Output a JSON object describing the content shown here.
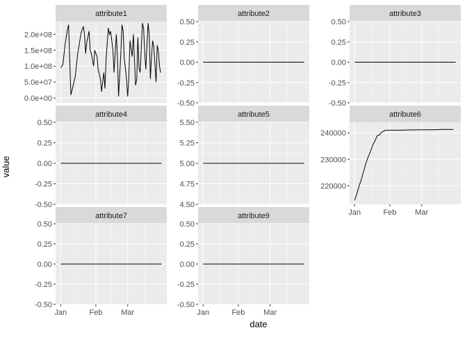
{
  "figure": {
    "x_axis_title": "date",
    "y_axis_title": "value",
    "x_tick_labels": [
      "Jan",
      "Feb",
      "Mar"
    ],
    "colors": {
      "panel_background": "#ebebeb",
      "strip_background": "#d9d9d9",
      "grid_major": "#ffffff",
      "line": "#000000",
      "tick_text": "#4d4d4d"
    }
  },
  "chart_data": [
    {
      "type": "line",
      "title": "attribute1",
      "yticks": [
        "0.0e+00",
        "5.0e+07",
        "1.0e+08",
        "1.5e+08",
        "2.0e+08"
      ],
      "ytick_values": [
        0,
        50000000,
        100000000,
        150000000,
        200000000
      ],
      "ylim": [
        -15000000,
        240000000
      ],
      "xlim": [
        "2021-01-01",
        "2021-03-31"
      ],
      "x": [
        "2021-01-01",
        "2021-01-03",
        "2021-01-05",
        "2021-01-07",
        "2021-01-08",
        "2021-01-10",
        "2021-01-12",
        "2021-01-14",
        "2021-01-16",
        "2021-01-17",
        "2021-01-19",
        "2021-01-21",
        "2021-01-22",
        "2021-01-23",
        "2021-01-24",
        "2021-01-26",
        "2021-01-27",
        "2021-01-28",
        "2021-01-30",
        "2021-01-31",
        "2021-02-02",
        "2021-02-03",
        "2021-02-05",
        "2021-02-06",
        "2021-02-08",
        "2021-02-09",
        "2021-02-10",
        "2021-02-12",
        "2021-02-13",
        "2021-02-14",
        "2021-02-16",
        "2021-02-17",
        "2021-02-19",
        "2021-02-20",
        "2021-02-21",
        "2021-02-23",
        "2021-02-24",
        "2021-02-25",
        "2021-02-26",
        "2021-02-28",
        "2021-03-01",
        "2021-03-02",
        "2021-03-03",
        "2021-03-05",
        "2021-03-06",
        "2021-03-08",
        "2021-03-09",
        "2021-03-10",
        "2021-03-11",
        "2021-03-12",
        "2021-03-14",
        "2021-03-15",
        "2021-03-16",
        "2021-03-17",
        "2021-03-19",
        "2021-03-20",
        "2021-03-21",
        "2021-03-22",
        "2021-03-23",
        "2021-03-24",
        "2021-03-26",
        "2021-03-27",
        "2021-03-28",
        "2021-03-29",
        "2021-03-30"
      ],
      "series": [
        {
          "values": [
            95000000,
            105000000,
            170000000,
            215000000,
            230000000,
            10000000,
            40000000,
            70000000,
            140000000,
            160000000,
            205000000,
            225000000,
            200000000,
            140000000,
            175000000,
            210000000,
            150000000,
            140000000,
            100000000,
            150000000,
            130000000,
            90000000,
            60000000,
            20000000,
            80000000,
            30000000,
            120000000,
            220000000,
            200000000,
            210000000,
            150000000,
            80000000,
            200000000,
            130000000,
            5000000,
            140000000,
            230000000,
            210000000,
            125000000,
            60000000,
            5000000,
            60000000,
            180000000,
            130000000,
            200000000,
            40000000,
            60000000,
            190000000,
            95000000,
            80000000,
            235000000,
            220000000,
            145000000,
            90000000,
            235000000,
            200000000,
            60000000,
            130000000,
            180000000,
            160000000,
            50000000,
            165000000,
            150000000,
            100000000,
            80000000
          ]
        }
      ]
    },
    {
      "type": "line",
      "title": "attribute2",
      "yticks": [
        "-0.50",
        "-0.25",
        "0.00",
        "0.25",
        "0.50"
      ],
      "ytick_values": [
        -0.5,
        -0.25,
        0,
        0.25,
        0.5
      ],
      "ylim": [
        -0.5,
        0.5
      ],
      "xlim": [
        "2021-01-01",
        "2021-03-31"
      ],
      "x": [
        "2021-01-01",
        "2021-03-31"
      ],
      "series": [
        {
          "values": [
            0,
            0
          ]
        }
      ]
    },
    {
      "type": "line",
      "title": "attribute3",
      "yticks": [
        "-0.50",
        "-0.25",
        "0.00",
        "0.25",
        "0.50"
      ],
      "ytick_values": [
        -0.5,
        -0.25,
        0,
        0.25,
        0.5
      ],
      "ylim": [
        -0.5,
        0.5
      ],
      "xlim": [
        "2021-01-01",
        "2021-03-31"
      ],
      "x": [
        "2021-01-01",
        "2021-03-31"
      ],
      "series": [
        {
          "values": [
            0,
            0
          ]
        }
      ]
    },
    {
      "type": "line",
      "title": "attribute4",
      "yticks": [
        "-0.50",
        "-0.25",
        "0.00",
        "0.25",
        "0.50"
      ],
      "ytick_values": [
        -0.5,
        -0.25,
        0,
        0.25,
        0.5
      ],
      "ylim": [
        -0.5,
        0.5
      ],
      "xlim": [
        "2021-01-01",
        "2021-03-31"
      ],
      "x": [
        "2021-01-01",
        "2021-03-31"
      ],
      "series": [
        {
          "values": [
            0,
            0
          ]
        }
      ]
    },
    {
      "type": "line",
      "title": "attribute5",
      "yticks": [
        "4.50",
        "4.75",
        "5.00",
        "5.25",
        "5.50"
      ],
      "ytick_values": [
        4.5,
        4.75,
        5,
        5.25,
        5.5
      ],
      "ylim": [
        4.5,
        5.5
      ],
      "xlim": [
        "2021-01-01",
        "2021-03-31"
      ],
      "x": [
        "2021-01-01",
        "2021-03-31"
      ],
      "series": [
        {
          "values": [
            5,
            5
          ]
        }
      ]
    },
    {
      "type": "line",
      "title": "attribute6",
      "yticks": [
        "220000",
        "230000",
        "240000"
      ],
      "ytick_values": [
        220000,
        230000,
        240000
      ],
      "ylim": [
        213000,
        244000
      ],
      "xlim": [
        "2021-01-01",
        "2021-03-31"
      ],
      "x": [
        "2021-01-01",
        "2021-01-03",
        "2021-01-05",
        "2021-01-07",
        "2021-01-09",
        "2021-01-11",
        "2021-01-13",
        "2021-01-15",
        "2021-01-17",
        "2021-01-19",
        "2021-01-21",
        "2021-01-23",
        "2021-01-24",
        "2021-01-26",
        "2021-01-28",
        "2021-02-01",
        "2021-02-10",
        "2021-02-20",
        "2021-03-01",
        "2021-03-10",
        "2021-03-20",
        "2021-03-29"
      ],
      "series": [
        {
          "values": [
            214500,
            217000,
            220000,
            222500,
            225500,
            228500,
            231000,
            233000,
            235500,
            237000,
            239000,
            239200,
            240000,
            240500,
            241000,
            241000,
            241000,
            241100,
            241200,
            241200,
            241300,
            241300
          ]
        }
      ]
    },
    {
      "type": "line",
      "title": "attribute7",
      "yticks": [
        "-0.50",
        "-0.25",
        "0.00",
        "0.25",
        "0.50"
      ],
      "ytick_values": [
        -0.5,
        -0.25,
        0,
        0.25,
        0.5
      ],
      "ylim": [
        -0.5,
        0.5
      ],
      "xlim": [
        "2021-01-01",
        "2021-03-31"
      ],
      "x": [
        "2021-01-01",
        "2021-03-31"
      ],
      "series": [
        {
          "values": [
            0,
            0
          ]
        }
      ]
    },
    {
      "type": "line",
      "title": "attribute9",
      "yticks": [
        "-0.50",
        "-0.25",
        "0.00",
        "0.25",
        "0.50"
      ],
      "ytick_values": [
        -0.5,
        -0.25,
        0,
        0.25,
        0.5
      ],
      "ylim": [
        -0.5,
        0.5
      ],
      "xlim": [
        "2021-01-01",
        "2021-03-31"
      ],
      "x": [
        "2021-01-01",
        "2021-03-31"
      ],
      "series": [
        {
          "values": [
            0,
            0
          ]
        }
      ]
    }
  ]
}
